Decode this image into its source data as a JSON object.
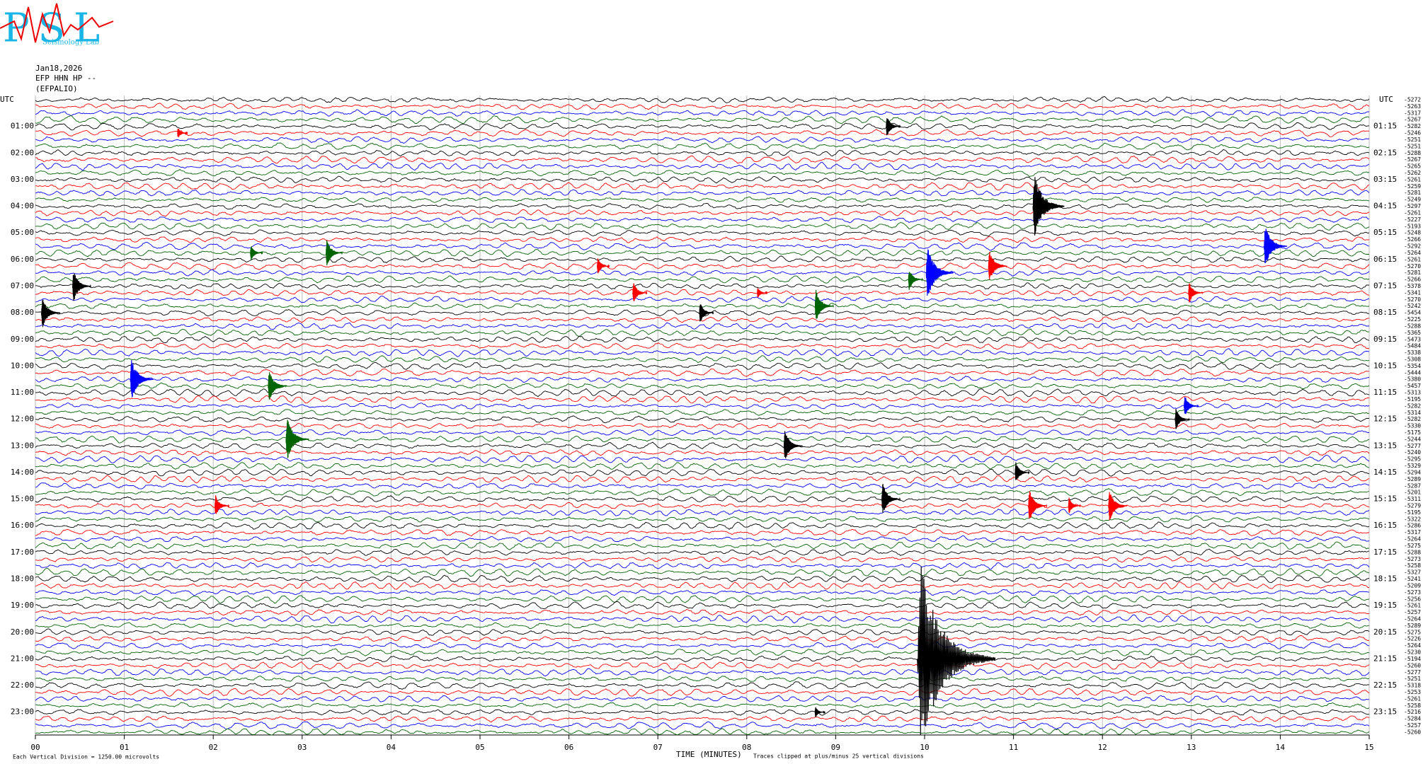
{
  "chart_data": {
    "type": "helicorder",
    "logo": {
      "big": "PSL",
      "small": "Seismology Lab"
    },
    "date": "Jan18,2026",
    "station": "EFP HHN HP --",
    "station_name": "(EFPALIO)",
    "left_header": "UTC",
    "right_header": "UTC",
    "left_hours": [
      "01:00",
      "02:00",
      "03:00",
      "04:00",
      "05:00",
      "06:00",
      "07:00",
      "08:00",
      "09:00",
      "10:00",
      "11:00",
      "12:00",
      "13:00",
      "14:00",
      "15:00",
      "16:00",
      "17:00",
      "18:00",
      "19:00",
      "20:00",
      "21:00",
      "22:00",
      "23:00"
    ],
    "right_hours": [
      "01:15",
      "02:15",
      "03:15",
      "04:15",
      "05:15",
      "06:15",
      "07:15",
      "08:15",
      "09:15",
      "10:15",
      "11:15",
      "12:15",
      "13:15",
      "14:15",
      "15:15",
      "16:15",
      "17:15",
      "18:15",
      "19:15",
      "20:15",
      "21:15",
      "22:15",
      "23:15"
    ],
    "offsets": [
      "-5272",
      "-5263",
      "-5317",
      "-5267",
      "-5282",
      "-5246",
      "-5251",
      "-5251",
      "-5288",
      "-5267",
      "-5265",
      "-5262",
      "-5261",
      "-5259",
      "-5281",
      "-5249",
      "-5297",
      "-5261",
      "-5227",
      "-5193",
      "-5248",
      "-5266",
      "-5292",
      "-5264",
      "-5261",
      "-5270",
      "-5281",
      "-5266",
      "-5378",
      "-5341",
      "-5270",
      "-5242",
      "-5454",
      "-5225",
      "-5288",
      "-5365",
      "-5473",
      "-5484",
      "-5338",
      "-5308",
      "-5354",
      "-5444",
      "-5380",
      "-5457",
      "-5313",
      "-5195",
      "-5282",
      "-5314",
      "-5282",
      "-5330",
      "-5175",
      "-5244",
      "-5277",
      "-5240",
      "-5295",
      "-5329",
      "-5294",
      "-5289",
      "-5287",
      "-5201",
      "-5311",
      "-5279",
      "-5195",
      "-5322",
      "-5286",
      "-5317",
      "-5264",
      "-5275",
      "-5288",
      "-5273",
      "-5258",
      "-5327",
      "-5241",
      "-5209",
      "-5273",
      "-5256",
      "-5261",
      "-5257",
      "-5264",
      "-5289",
      "-5275",
      "-5226",
      "-5264",
      "-5230",
      "-5194",
      "-5260",
      "-5277",
      "-5251",
      "-5318",
      "-5253",
      "-5261",
      "-5258",
      "-5216",
      "-5284",
      "-5257",
      "-5260"
    ],
    "trace_colors": [
      "#000000",
      "#ff0000",
      "#0000ff",
      "#006400"
    ],
    "xlabel": "TIME (MINUTES)",
    "xlim": [
      0,
      15
    ],
    "xticks": [
      {
        "value": 0,
        "label": "00"
      },
      {
        "value": 1,
        "label": "01"
      },
      {
        "value": 2,
        "label": "02"
      },
      {
        "value": 3,
        "label": "03"
      },
      {
        "value": 4,
        "label": "04"
      },
      {
        "value": 5,
        "label": "05"
      },
      {
        "value": 6,
        "label": "06"
      },
      {
        "value": 7,
        "label": "07"
      },
      {
        "value": 8,
        "label": "08"
      },
      {
        "value": 9,
        "label": "09"
      },
      10,
      11,
      12,
      13,
      14,
      15
    ],
    "scale_note": "Each Vertical Division = 1250.00 microvolts",
    "clip_note": "Traces clipped at plus/minus 25 vertical divisions",
    "events": [
      {
        "trace": 5,
        "minute": 1.63,
        "size": 1
      },
      {
        "trace": 4,
        "minute": 9.6,
        "size": 2
      },
      {
        "trace": 16,
        "minute": 11.25,
        "size": 6
      },
      {
        "trace": 22,
        "minute": 13.85,
        "size": 4
      },
      {
        "trace": 23,
        "minute": 2.45,
        "size": 1.5
      },
      {
        "trace": 23,
        "minute": 3.3,
        "size": 2.5
      },
      {
        "trace": 28,
        "minute": 0.45,
        "size": 3
      },
      {
        "trace": 25,
        "minute": 6.35,
        "size": 1.5
      },
      {
        "trace": 26,
        "minute": 10.05,
        "size": 5
      },
      {
        "trace": 25,
        "minute": 10.75,
        "size": 3
      },
      {
        "trace": 27,
        "minute": 9.85,
        "size": 2
      },
      {
        "trace": 29,
        "minute": 8.15,
        "size": 1
      },
      {
        "trace": 29,
        "minute": 6.75,
        "size": 2
      },
      {
        "trace": 29,
        "minute": 13.0,
        "size": 2
      },
      {
        "trace": 32,
        "minute": 0.1,
        "size": 3
      },
      {
        "trace": 31,
        "minute": 8.8,
        "size": 3
      },
      {
        "trace": 32,
        "minute": 7.5,
        "size": 2
      },
      {
        "trace": 42,
        "minute": 1.1,
        "size": 4
      },
      {
        "trace": 43,
        "minute": 2.65,
        "size": 3
      },
      {
        "trace": 51,
        "minute": 2.85,
        "size": 4
      },
      {
        "trace": 52,
        "minute": 8.45,
        "size": 3
      },
      {
        "trace": 48,
        "minute": 12.85,
        "size": 2
      },
      {
        "trace": 46,
        "minute": 12.95,
        "size": 2
      },
      {
        "trace": 56,
        "minute": 11.05,
        "size": 2
      },
      {
        "trace": 60,
        "minute": 9.55,
        "size": 3
      },
      {
        "trace": 61,
        "minute": 2.05,
        "size": 2
      },
      {
        "trace": 61,
        "minute": 11.2,
        "size": 3
      },
      {
        "trace": 61,
        "minute": 11.65,
        "size": 1.5
      },
      {
        "trace": 61,
        "minute": 12.1,
        "size": 3
      },
      {
        "trace": 84,
        "minute": 9.95,
        "size": 17
      },
      {
        "trace": 92,
        "minute": 8.8,
        "size": 1
      }
    ]
  }
}
